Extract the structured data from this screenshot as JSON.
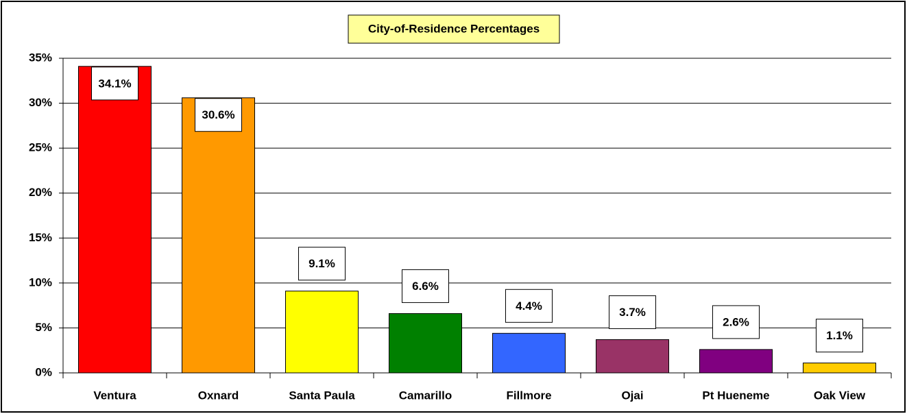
{
  "chart_data": {
    "type": "bar",
    "title": "City-of-Residence Percentages",
    "categories": [
      "Ventura",
      "Oxnard",
      "Santa Paula",
      "Camarillo",
      "Fillmore",
      "Ojai",
      "Pt Hueneme",
      "Oak View"
    ],
    "values": [
      34.1,
      30.6,
      9.1,
      6.6,
      4.4,
      3.7,
      2.6,
      1.1
    ],
    "value_labels": [
      "34.1%",
      "30.6%",
      "9.1%",
      "6.6%",
      "4.4%",
      "3.7%",
      "2.6%",
      "1.1%"
    ],
    "colors": [
      "#ff0000",
      "#ff9900",
      "#ffff00",
      "#008000",
      "#3366ff",
      "#993366",
      "#800080",
      "#ffcc00"
    ],
    "ylim": [
      0,
      35
    ],
    "yticks": [
      {
        "value": 0,
        "label": "0%"
      },
      {
        "value": 5,
        "label": "5%"
      },
      {
        "value": 10,
        "label": "10%"
      },
      {
        "value": 15,
        "label": "15%"
      },
      {
        "value": 20,
        "label": "20%"
      },
      {
        "value": 25,
        "label": "25%"
      },
      {
        "value": 30,
        "label": "30%"
      },
      {
        "value": 35,
        "label": "35%"
      }
    ],
    "grid": true
  }
}
